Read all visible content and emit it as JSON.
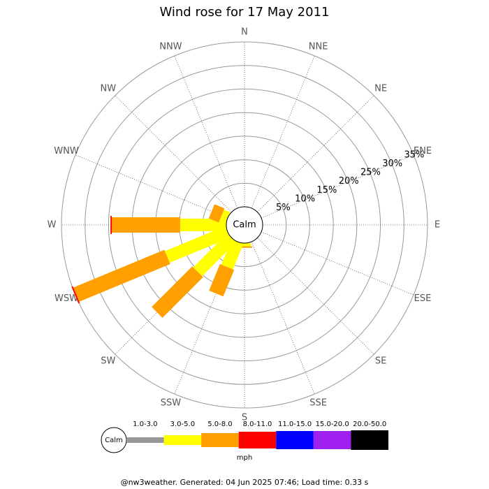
{
  "chart_data": {
    "type": "windrose",
    "title": "Wind rose for 17 May 2011",
    "categories": [
      "N",
      "NNE",
      "NE",
      "ENE",
      "E",
      "ESE",
      "SE",
      "SSE",
      "S",
      "SSW",
      "SW",
      "WSW",
      "W",
      "WNW",
      "NW",
      "NNW"
    ],
    "calm_label": "Calm",
    "unit": "mph",
    "rlim": [
      0,
      35
    ],
    "rticks": [
      {
        "value": 5,
        "label": "5%"
      },
      {
        "value": 10,
        "label": "10%"
      },
      {
        "value": 15,
        "label": "15%"
      },
      {
        "value": 20,
        "label": "20%"
      },
      {
        "value": 25,
        "label": "25%"
      },
      {
        "value": 30,
        "label": "30%"
      },
      {
        "value": 35,
        "label": "35%"
      }
    ],
    "series": [
      {
        "name": "1.0-3.0",
        "color": "#999999",
        "values": [
          0,
          0,
          0,
          0,
          0,
          0,
          0,
          0,
          0,
          0,
          0,
          0,
          0,
          0,
          0,
          0
        ]
      },
      {
        "name": "3.0-5.0",
        "color": "#ffff00",
        "values": [
          0,
          0,
          0,
          0,
          0,
          0,
          0,
          0,
          0.7,
          5.8,
          10.2,
          13.9,
          9.8,
          1.4,
          0,
          0
        ]
      },
      {
        "name": "5.0-8.0",
        "color": "#ffa000",
        "values": [
          0,
          0,
          0,
          0,
          0,
          0,
          0,
          0,
          0.3,
          6.1,
          12.2,
          20.9,
          14.5,
          2.3,
          0,
          0
        ]
      },
      {
        "name": "8.0-11.0",
        "color": "#ff0000",
        "values": [
          0,
          0,
          0,
          0,
          0,
          0,
          0,
          0,
          0,
          0,
          0,
          0.3,
          0.3,
          0,
          0,
          0
        ]
      },
      {
        "name": "11.0-15.0",
        "color": "#0000ff",
        "values": [
          0,
          0,
          0,
          0,
          0,
          0,
          0,
          0,
          0,
          0,
          0,
          0,
          0,
          0,
          0,
          0
        ]
      },
      {
        "name": "15.0-20.0",
        "color": "#a020f0",
        "values": [
          0,
          0,
          0,
          0,
          0,
          0,
          0,
          0,
          0,
          0,
          0,
          0,
          0,
          0,
          0,
          0
        ]
      },
      {
        "name": "20.0-50.0",
        "color": "#000000",
        "values": [
          0,
          0,
          0,
          0,
          0,
          0,
          0,
          0,
          0,
          0,
          0,
          0,
          0,
          0,
          0,
          0
        ]
      }
    ],
    "footer": "@nw3weather. Generated: 04 Jun 2025 07:46; Load time: 0.33 s"
  }
}
